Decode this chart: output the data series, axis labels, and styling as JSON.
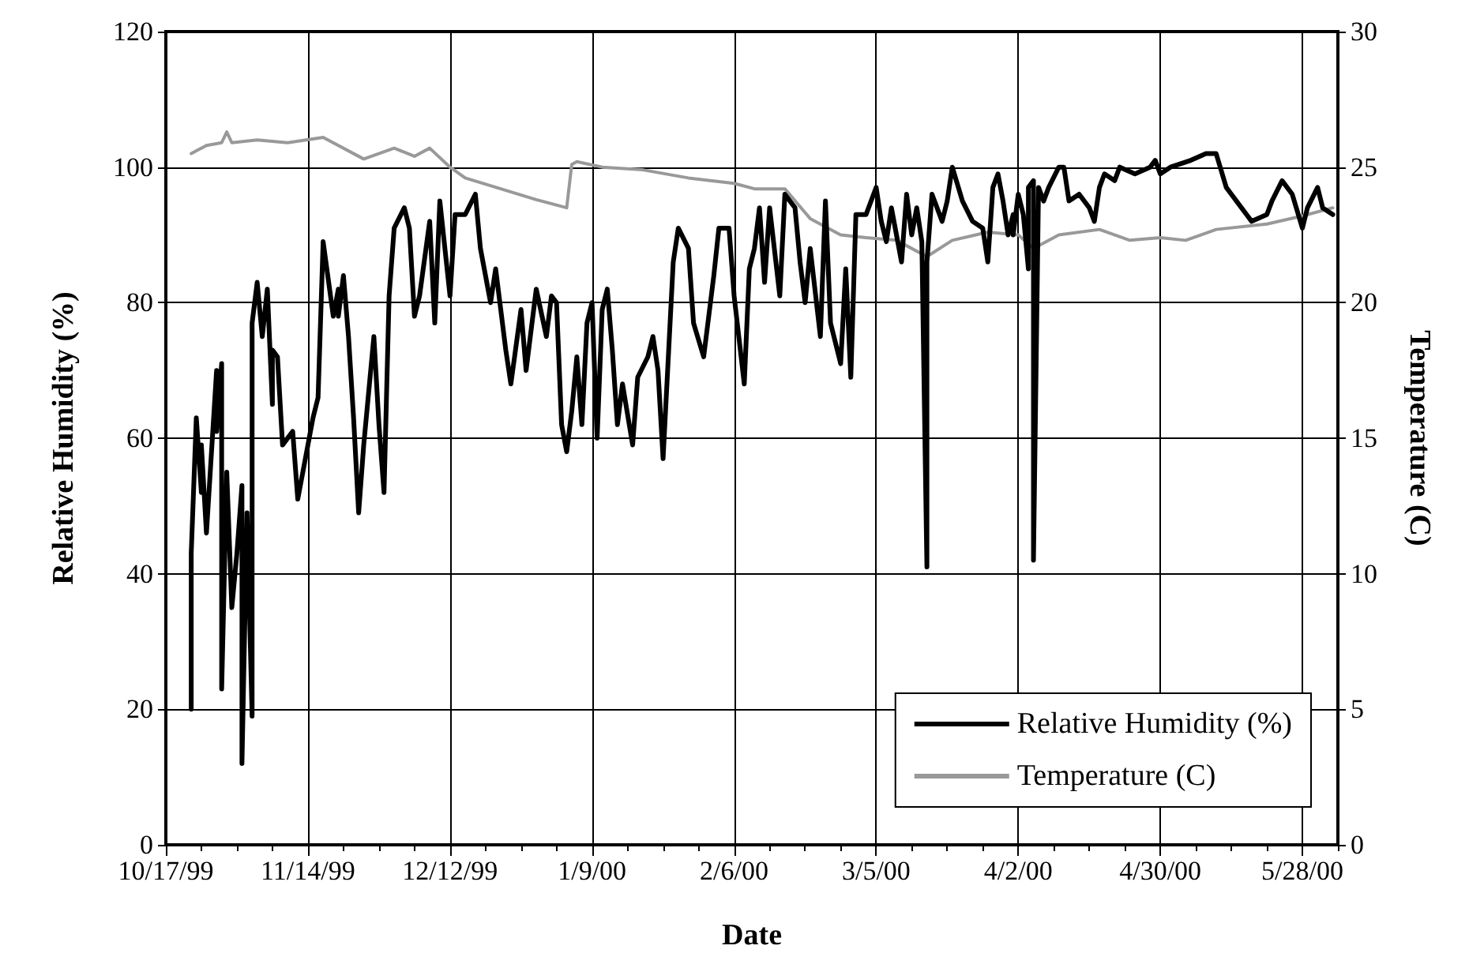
{
  "chart_data": {
    "type": "line",
    "xlabel": "Date",
    "ylabel": "Relative Humidity (%)",
    "y2label": "Temperature (C)",
    "xlim": [
      "1999-10-17",
      "2000-06-04"
    ],
    "xticks": [
      {
        "value": "1999-10-17",
        "label": "10/17/99"
      },
      {
        "value": "1999-10-24",
        "label": null
      },
      {
        "value": "1999-10-31",
        "label": null
      },
      {
        "value": "1999-11-07",
        "label": null
      },
      {
        "value": "1999-11-14",
        "label": "11/14/99"
      },
      {
        "value": "1999-11-21",
        "label": null
      },
      {
        "value": "1999-11-28",
        "label": null
      },
      {
        "value": "1999-12-05",
        "label": null
      },
      {
        "value": "1999-12-12",
        "label": "12/12/99"
      },
      {
        "value": "1999-12-19",
        "label": null
      },
      {
        "value": "1999-12-26",
        "label": null
      },
      {
        "value": "2000-01-02",
        "label": null
      },
      {
        "value": "2000-01-09",
        "label": "1/9/00"
      },
      {
        "value": "2000-01-16",
        "label": null
      },
      {
        "value": "2000-01-23",
        "label": null
      },
      {
        "value": "2000-01-30",
        "label": null
      },
      {
        "value": "2000-02-06",
        "label": "2/6/00"
      },
      {
        "value": "2000-02-13",
        "label": null
      },
      {
        "value": "2000-02-20",
        "label": null
      },
      {
        "value": "2000-02-27",
        "label": null
      },
      {
        "value": "2000-03-05",
        "label": "3/5/00"
      },
      {
        "value": "2000-03-12",
        "label": null
      },
      {
        "value": "2000-03-19",
        "label": null
      },
      {
        "value": "2000-03-26",
        "label": null
      },
      {
        "value": "2000-04-02",
        "label": "4/2/00"
      },
      {
        "value": "2000-04-09",
        "label": null
      },
      {
        "value": "2000-04-16",
        "label": null
      },
      {
        "value": "2000-04-23",
        "label": null
      },
      {
        "value": "2000-04-30",
        "label": "4/30/00"
      },
      {
        "value": "2000-05-07",
        "label": null
      },
      {
        "value": "2000-05-14",
        "label": null
      },
      {
        "value": "2000-05-21",
        "label": null
      },
      {
        "value": "2000-05-28",
        "label": "5/28/00"
      },
      {
        "value": "2000-06-04",
        "label": null
      }
    ],
    "ylim": [
      0,
      120
    ],
    "yticks": [
      0,
      20,
      40,
      60,
      80,
      100,
      120
    ],
    "y2lim": [
      0,
      30
    ],
    "y2ticks": [
      0,
      5,
      10,
      15,
      20,
      25,
      30
    ],
    "grid": true,
    "legend": "bottom right",
    "marker": "none",
    "line_style": "solid",
    "series": [
      {
        "name": "Relative Humidity (%)",
        "color": "#000000",
        "x": [
          "1999-10-22",
          "1999-10-22",
          "1999-10-23",
          "1999-10-24",
          "1999-10-24",
          "1999-10-25",
          "1999-10-27",
          "1999-10-27",
          "1999-10-28",
          "1999-10-28",
          "1999-10-29",
          "1999-10-30",
          "1999-10-31",
          "1999-11-01",
          "1999-11-01",
          "1999-11-02",
          "1999-11-03",
          "1999-11-03",
          "1999-11-04",
          "1999-11-05",
          "1999-11-06",
          "1999-11-07",
          "1999-11-07",
          "1999-11-08",
          "1999-11-09",
          "1999-11-11",
          "1999-11-12",
          "1999-11-14",
          "1999-11-15",
          "1999-11-16",
          "1999-11-17",
          "1999-11-19",
          "1999-11-20",
          "1999-11-20",
          "1999-11-21",
          "1999-11-22",
          "1999-11-23",
          "1999-11-24",
          "1999-11-25",
          "1999-11-27",
          "1999-11-28",
          "1999-11-29",
          "1999-11-30",
          "1999-12-01",
          "1999-12-03",
          "1999-12-04",
          "1999-12-05",
          "1999-12-06",
          "1999-12-08",
          "1999-12-09",
          "1999-12-10",
          "1999-12-12",
          "1999-12-13",
          "1999-12-15",
          "1999-12-17",
          "1999-12-18",
          "1999-12-20",
          "1999-12-21",
          "1999-12-23",
          "1999-12-24",
          "1999-12-26",
          "1999-12-27",
          "1999-12-29",
          "1999-12-31",
          "2000-01-01",
          "2000-01-02",
          "2000-01-03",
          "2000-01-04",
          "2000-01-05",
          "2000-01-06",
          "2000-01-07",
          "2000-01-08",
          "2000-01-09",
          "2000-01-10",
          "2000-01-11",
          "2000-01-12",
          "2000-01-13",
          "2000-01-14",
          "2000-01-15",
          "2000-01-17",
          "2000-01-18",
          "2000-01-20",
          "2000-01-21",
          "2000-01-22",
          "2000-01-23",
          "2000-01-25",
          "2000-01-26",
          "2000-01-28",
          "2000-01-29",
          "2000-01-31",
          "2000-02-02",
          "2000-02-03",
          "2000-02-05",
          "2000-02-06",
          "2000-02-08",
          "2000-02-09",
          "2000-02-10",
          "2000-02-11",
          "2000-02-12",
          "2000-02-13",
          "2000-02-15",
          "2000-02-16",
          "2000-02-18",
          "2000-02-19",
          "2000-02-20",
          "2000-02-21",
          "2000-02-23",
          "2000-02-24",
          "2000-02-25",
          "2000-02-27",
          "2000-02-28",
          "2000-02-29",
          "2000-03-01",
          "2000-03-03",
          "2000-03-05",
          "2000-03-06",
          "2000-03-07",
          "2000-03-08",
          "2000-03-10",
          "2000-03-11",
          "2000-03-12",
          "2000-03-13",
          "2000-03-14",
          "2000-03-15",
          "2000-03-15",
          "2000-03-16",
          "2000-03-18",
          "2000-03-19",
          "2000-03-20",
          "2000-03-22",
          "2000-03-24",
          "2000-03-26",
          "2000-03-27",
          "2000-03-28",
          "2000-03-29",
          "2000-03-30",
          "2000-03-31",
          "2000-04-01",
          "2000-04-01",
          "2000-04-02",
          "2000-04-03",
          "2000-04-04",
          "2000-04-04",
          "2000-04-05",
          "2000-04-05",
          "2000-04-06",
          "2000-04-07",
          "2000-04-08",
          "2000-04-10",
          "2000-04-11",
          "2000-04-12",
          "2000-04-14",
          "2000-04-16",
          "2000-04-17",
          "2000-04-18",
          "2000-04-19",
          "2000-04-21",
          "2000-04-22",
          "2000-04-25",
          "2000-04-28",
          "2000-04-29",
          "2000-04-30",
          "2000-05-02",
          "2000-05-06",
          "2000-05-09",
          "2000-05-11",
          "2000-05-13",
          "2000-05-14",
          "2000-05-15",
          "2000-05-17",
          "2000-05-18",
          "2000-05-21",
          "2000-05-22",
          "2000-05-24",
          "2000-05-26",
          "2000-05-28",
          "2000-05-29",
          "2000-05-31",
          "2000-06-01",
          "2000-06-03"
        ],
        "values": [
          20,
          43,
          63,
          52,
          59,
          46,
          70,
          61,
          71,
          23,
          55,
          35,
          43,
          53,
          12,
          49,
          19,
          77,
          83,
          75,
          82,
          65,
          73,
          72,
          59,
          61,
          51,
          59,
          63,
          66,
          89,
          78,
          82,
          78,
          84,
          75,
          63,
          49,
          59,
          75,
          62,
          52,
          81,
          91,
          94,
          91,
          78,
          81,
          92,
          77,
          95,
          81,
          93,
          93,
          96,
          88,
          80,
          85,
          73,
          68,
          79,
          70,
          82,
          75,
          81,
          80,
          62,
          58,
          64,
          72,
          62,
          77,
          80,
          60,
          79,
          82,
          73,
          62,
          68,
          59,
          69,
          72,
          75,
          70,
          57,
          86,
          91,
          88,
          77,
          72,
          84,
          91,
          91,
          81,
          68,
          85,
          88,
          94,
          83,
          94,
          81,
          96,
          94,
          86,
          80,
          88,
          75,
          95,
          77,
          71,
          85,
          69,
          93,
          93,
          97,
          92,
          89,
          94,
          86,
          96,
          90,
          94,
          89,
          41,
          86,
          96,
          92,
          95,
          100,
          95,
          92,
          91,
          86,
          97,
          99,
          95,
          90,
          93,
          90,
          96,
          93,
          85,
          97,
          98,
          42,
          97,
          95,
          97,
          100,
          100,
          95,
          96,
          94,
          92,
          97,
          99,
          98,
          100,
          99,
          100,
          101,
          99,
          100,
          101,
          102,
          102,
          97,
          96,
          95,
          93,
          92,
          93,
          95,
          98,
          96,
          91,
          94,
          97,
          94,
          93
        ]
      },
      {
        "name": "Temperature (C)",
        "color": "#999999",
        "axis": "y2",
        "x": [
          "1999-10-22",
          "1999-10-25",
          "1999-10-28",
          "1999-10-29",
          "1999-10-30",
          "1999-11-04",
          "1999-11-10",
          "1999-11-17",
          "1999-11-25",
          "1999-12-01",
          "1999-12-05",
          "1999-12-08",
          "1999-12-12",
          "1999-12-15",
          "1999-12-22",
          "1999-12-29",
          "2000-01-04",
          "2000-01-05",
          "2000-01-06",
          "2000-01-11",
          "2000-01-19",
          "2000-01-28",
          "2000-02-06",
          "2000-02-10",
          "2000-02-16",
          "2000-02-21",
          "2000-02-27",
          "2000-03-03",
          "2000-03-09",
          "2000-03-15",
          "2000-03-20",
          "2000-03-27",
          "2000-04-02",
          "2000-04-05",
          "2000-04-10",
          "2000-04-18",
          "2000-04-24",
          "2000-04-30",
          "2000-05-05",
          "2000-05-11",
          "2000-05-21",
          "2000-05-28",
          "2000-06-03"
        ],
        "values": [
          25.5,
          25.8,
          25.9,
          26.3,
          25.9,
          26.0,
          25.9,
          26.1,
          25.3,
          25.7,
          25.4,
          25.7,
          25.0,
          24.6,
          24.2,
          23.8,
          23.5,
          25.1,
          25.2,
          25.0,
          24.9,
          24.6,
          24.4,
          24.2,
          24.2,
          23.1,
          22.5,
          22.4,
          22.3,
          21.7,
          22.3,
          22.6,
          22.5,
          22.0,
          22.5,
          22.7,
          22.3,
          22.4,
          22.3,
          22.7,
          22.9,
          23.2,
          23.5
        ]
      }
    ]
  }
}
